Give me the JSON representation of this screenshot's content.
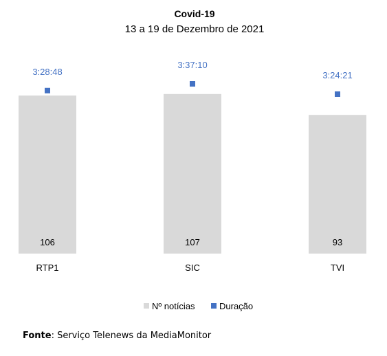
{
  "chart_data": {
    "type": "bar",
    "title": "Covid-19",
    "subtitle": "13 a 19 de Dezembro de 2021",
    "categories": [
      "RTP1",
      "SIC",
      "TVI"
    ],
    "series": [
      {
        "name": "Nº notícias",
        "kind": "bar",
        "values": [
          106,
          107,
          93
        ],
        "labels": [
          "106",
          "107",
          "93"
        ]
      },
      {
        "name": "Duração",
        "kind": "point",
        "values_seconds": [
          12528,
          13030,
          12261
        ],
        "labels": [
          "3:28:48",
          "3:37:10",
          "3:24:21"
        ]
      }
    ],
    "legend_position": "bottom",
    "grid": false
  },
  "colors": {
    "bar": "#d9d9d9",
    "marker": "#4472c4",
    "duration_label": "#4472c4"
  },
  "source": {
    "label": "Fonte",
    "text": ": Serviço Telenews da MediaMonitor"
  }
}
